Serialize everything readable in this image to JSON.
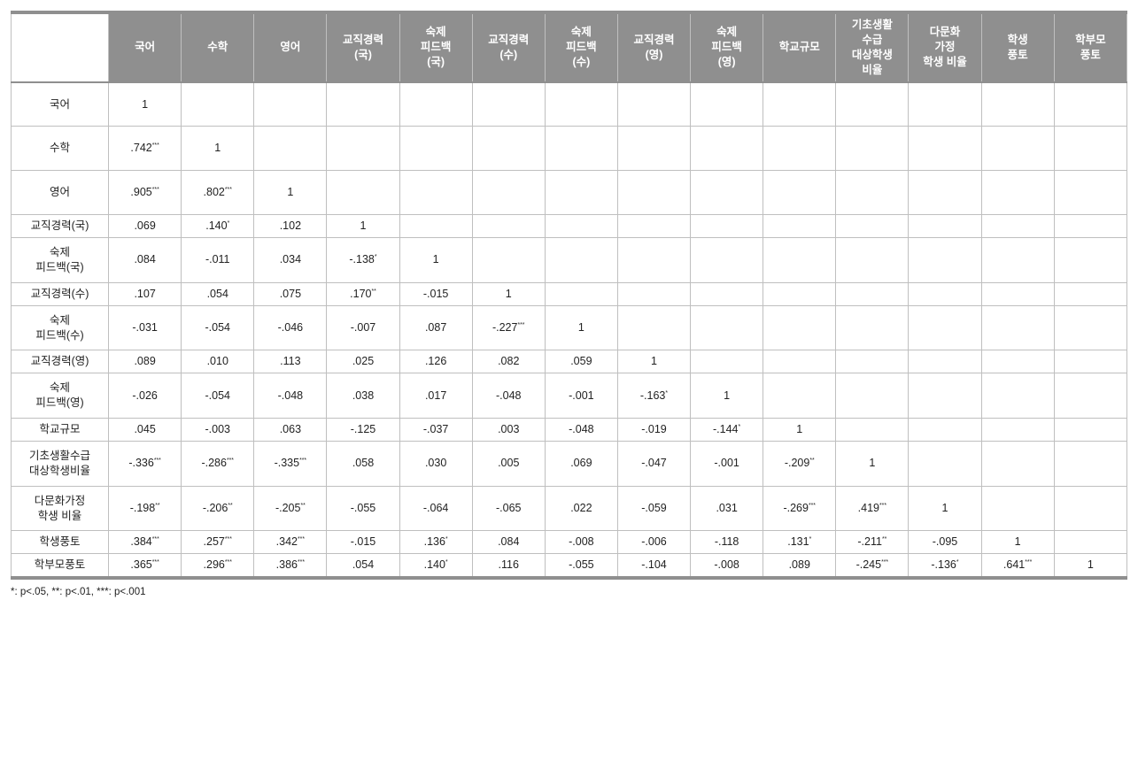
{
  "headers": [
    "",
    "국어",
    "수학",
    "영어",
    "교직경력\n(국)",
    "숙제\n피드백\n(국)",
    "교직경력\n(수)",
    "숙제\n피드백\n(수)",
    "교직경력\n(영)",
    "숙제\n피드백\n(영)",
    "학교규모",
    "기초생활\n수급\n대상학생\n비율",
    "다문화\n가정\n학생 비율",
    "학생\n풍토",
    "학부모\n풍토"
  ],
  "row_labels": [
    "국어",
    "수학",
    "영어",
    "교직경력(국)",
    "숙제\n피드백(국)",
    "교직경력(수)",
    "숙제\n피드백(수)",
    "교직경력(영)",
    "숙제\n피드백(영)",
    "학교규모",
    "기초생활수급\n대상학생비율",
    "다문화가정\n학생 비율",
    "학생풍토",
    "학부모풍토"
  ],
  "row_classes": [
    "tall",
    "tall",
    "tall",
    "",
    "mid",
    "",
    "mid",
    "",
    "mid",
    "",
    "mid",
    "mid",
    "",
    ""
  ],
  "cells": [
    [
      {
        "v": "1"
      }
    ],
    [
      {
        "v": ".742",
        "s": "***"
      },
      {
        "v": "1"
      }
    ],
    [
      {
        "v": ".905",
        "s": "***"
      },
      {
        "v": ".802",
        "s": "***"
      },
      {
        "v": "1"
      }
    ],
    [
      {
        "v": ".069"
      },
      {
        "v": ".140",
        "s": "*"
      },
      {
        "v": ".102"
      },
      {
        "v": "1"
      }
    ],
    [
      {
        "v": ".084"
      },
      {
        "v": "-.011"
      },
      {
        "v": ".034"
      },
      {
        "v": "-.138",
        "s": "*"
      },
      {
        "v": "1"
      }
    ],
    [
      {
        "v": ".107"
      },
      {
        "v": ".054"
      },
      {
        "v": ".075"
      },
      {
        "v": ".170",
        "s": "**"
      },
      {
        "v": "-.015"
      },
      {
        "v": "1"
      }
    ],
    [
      {
        "v": "-.031"
      },
      {
        "v": "-.054"
      },
      {
        "v": "-.046"
      },
      {
        "v": "-.007"
      },
      {
        "v": ".087"
      },
      {
        "v": "-.227",
        "s": "***"
      },
      {
        "v": "1"
      }
    ],
    [
      {
        "v": ".089"
      },
      {
        "v": ".010"
      },
      {
        "v": ".113"
      },
      {
        "v": ".025"
      },
      {
        "v": ".126"
      },
      {
        "v": ".082"
      },
      {
        "v": ".059"
      },
      {
        "v": "1"
      }
    ],
    [
      {
        "v": "-.026"
      },
      {
        "v": "-.054"
      },
      {
        "v": "-.048"
      },
      {
        "v": ".038"
      },
      {
        "v": ".017"
      },
      {
        "v": "-.048"
      },
      {
        "v": "-.001"
      },
      {
        "v": "-.163",
        "s": "*"
      },
      {
        "v": "1"
      }
    ],
    [
      {
        "v": ".045"
      },
      {
        "v": "-.003"
      },
      {
        "v": ".063"
      },
      {
        "v": "-.125"
      },
      {
        "v": "-.037"
      },
      {
        "v": ".003"
      },
      {
        "v": "-.048"
      },
      {
        "v": "-.019"
      },
      {
        "v": "-.144",
        "s": "*"
      },
      {
        "v": "1"
      }
    ],
    [
      {
        "v": "-.336",
        "s": "***"
      },
      {
        "v": "-.286",
        "s": "***"
      },
      {
        "v": "-.335",
        "s": "***"
      },
      {
        "v": ".058"
      },
      {
        "v": ".030"
      },
      {
        "v": ".005"
      },
      {
        "v": ".069"
      },
      {
        "v": "-.047"
      },
      {
        "v": "-.001"
      },
      {
        "v": "-.209",
        "s": "**"
      },
      {
        "v": "1"
      }
    ],
    [
      {
        "v": "-.198",
        "s": "**"
      },
      {
        "v": "-.206",
        "s": "**"
      },
      {
        "v": "-.205",
        "s": "**"
      },
      {
        "v": "-.055"
      },
      {
        "v": "-.064"
      },
      {
        "v": "-.065"
      },
      {
        "v": ".022"
      },
      {
        "v": "-.059"
      },
      {
        "v": ".031"
      },
      {
        "v": "-.269",
        "s": "***"
      },
      {
        "v": ".419",
        "s": "***"
      },
      {
        "v": "1"
      }
    ],
    [
      {
        "v": ".384",
        "s": "***"
      },
      {
        "v": ".257",
        "s": "***"
      },
      {
        "v": ".342",
        "s": "***"
      },
      {
        "v": "-.015"
      },
      {
        "v": ".136",
        "s": "*"
      },
      {
        "v": ".084"
      },
      {
        "v": "-.008"
      },
      {
        "v": "-.006"
      },
      {
        "v": "-.118"
      },
      {
        "v": ".131",
        "s": "*"
      },
      {
        "v": "-.211",
        "s": "**"
      },
      {
        "v": "-.095"
      },
      {
        "v": "1"
      }
    ],
    [
      {
        "v": ".365",
        "s": "***"
      },
      {
        "v": ".296",
        "s": "***"
      },
      {
        "v": ".386",
        "s": "***"
      },
      {
        "v": ".054"
      },
      {
        "v": ".140",
        "s": "*"
      },
      {
        "v": ".116"
      },
      {
        "v": "-.055"
      },
      {
        "v": "-.104"
      },
      {
        "v": "-.008"
      },
      {
        "v": ".089"
      },
      {
        "v": "-.245",
        "s": "***"
      },
      {
        "v": "-.136",
        "s": "*"
      },
      {
        "v": ".641",
        "s": "***"
      },
      {
        "v": "1"
      }
    ]
  ],
  "footnote": "*: p<.05, **: p<.01, ***: p<.001"
}
